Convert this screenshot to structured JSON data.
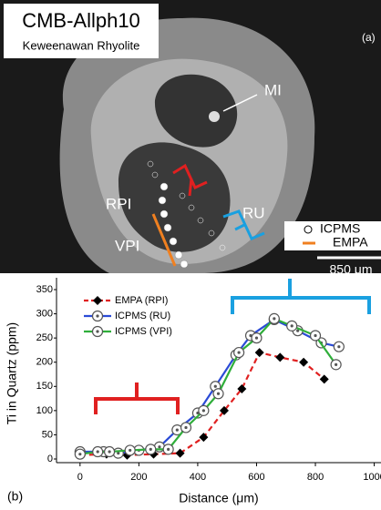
{
  "panel_a": {
    "title": "CMB-Allph10",
    "subtitle": "Keweenawan Rhyolite",
    "label": "(a)",
    "regions": [
      "MI",
      "RPI",
      "RU",
      "VPI"
    ],
    "legend": [
      "ICPMS",
      "EMPA"
    ],
    "scale_bar": "850 μm"
  },
  "chart_data": {
    "type": "line",
    "panel_label": "(b)",
    "xlabel": "Distance (μm)",
    "ylabel": "Ti in Quartz (ppm)",
    "xlim": [
      -80,
      1023
    ],
    "ylim": [
      0,
      350
    ],
    "xticks": [
      0,
      200,
      400,
      600,
      800,
      1000
    ],
    "yticks": [
      0,
      50,
      100,
      150,
      200,
      250,
      300,
      350
    ],
    "legend": "upper left",
    "series": [
      {
        "name": "EMPA (RPI)",
        "color": "#e02020",
        "marker": "diamond",
        "marker_color": "#000000",
        "dashed": true,
        "x": [
          0,
          90,
          160,
          250,
          340,
          420,
          490,
          550,
          610,
          680,
          760,
          830
        ],
        "values": [
          8,
          10,
          8,
          10,
          12,
          45,
          100,
          145,
          220,
          210,
          200,
          165
        ]
      },
      {
        "name": "ICPMS (RU)",
        "color": "#2b4bd6",
        "marker": "circle",
        "marker_color": "#555555",
        "dashed": false,
        "x": [
          0,
          80,
          130,
          200,
          270,
          330,
          400,
          460,
          530,
          580,
          660,
          740,
          820,
          880
        ],
        "values": [
          15,
          15,
          12,
          18,
          25,
          60,
          95,
          150,
          215,
          255,
          288,
          265,
          240,
          232
        ]
      },
      {
        "name": "ICPMS (VPI)",
        "color": "#2fae3a",
        "marker": "circle",
        "marker_color": "#555555",
        "dashed": false,
        "x": [
          0,
          60,
          100,
          170,
          240,
          300,
          360,
          420,
          470,
          540,
          600,
          660,
          720,
          800,
          870
        ],
        "values": [
          10,
          15,
          15,
          18,
          20,
          20,
          65,
          100,
          135,
          220,
          250,
          290,
          275,
          255,
          195
        ]
      }
    ]
  }
}
